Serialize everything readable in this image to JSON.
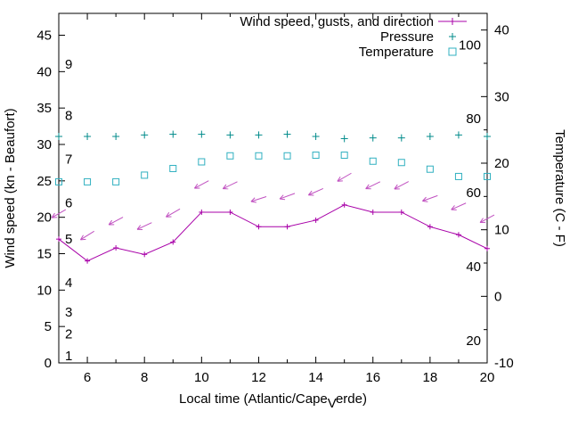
{
  "chart_data": {
    "type": "line",
    "title": "",
    "xlabel_parts": [
      "Local time (Atlantic/Cape",
      "V",
      "erde)"
    ],
    "ylabel_left": "Wind speed (kn - Beaufort)",
    "ylabel_right": "Temperature (C - F)",
    "x_range": [
      5,
      20
    ],
    "x_ticks_labeled": [
      6,
      8,
      10,
      12,
      14,
      16,
      18,
      20
    ],
    "y_left": {
      "range": [
        0,
        48
      ],
      "ticks": [
        0,
        5,
        10,
        15,
        20,
        25,
        30,
        35,
        40,
        45
      ]
    },
    "y_right": {
      "range": [
        -10,
        42.5
      ],
      "ticks": [
        -10,
        0,
        10,
        20,
        30,
        40
      ]
    },
    "beaufort_scale": {
      "labels": [
        1,
        2,
        3,
        4,
        5,
        6,
        7,
        8,
        9
      ],
      "knots": [
        1,
        4,
        7,
        11,
        17,
        22,
        28,
        34,
        41
      ]
    },
    "fahrenheit_scale": {
      "labels": [
        20,
        40,
        60,
        80,
        100
      ]
    },
    "colors": {
      "wind": "#a800a8",
      "gusts": "#c050c0",
      "pressure": "#008b8b",
      "temperature": "#30b0c0"
    },
    "legend": [
      {
        "label": "Wind speed, gusts, and direction",
        "marker": "line-point",
        "color_key": "wind"
      },
      {
        "label": "Pressure",
        "marker": "plus",
        "color_key": "pressure"
      },
      {
        "label": "Temperature",
        "marker": "square",
        "color_key": "temperature"
      }
    ],
    "x": [
      5,
      6,
      7,
      8,
      9,
      10,
      11,
      12,
      13,
      14,
      15,
      16,
      17,
      18,
      19,
      20
    ],
    "series": {
      "wind_speed_kn": [
        17.0,
        14.0,
        15.8,
        14.9,
        16.6,
        20.7,
        20.7,
        18.7,
        18.7,
        19.6,
        21.7,
        20.7,
        20.7,
        18.7,
        17.6,
        15.7
      ],
      "gusts_kn": [
        20.5,
        17.5,
        19.5,
        18.8,
        20.6,
        24.5,
        24.4,
        22.5,
        22.9,
        23.5,
        25.5,
        24.4,
        24.4,
        22.6,
        21.5,
        19.8
      ],
      "gust_arrow_angle_deg": [
        150,
        148,
        152,
        155,
        150,
        152,
        154,
        162,
        160,
        156,
        150,
        154,
        152,
        160,
        156,
        152
      ],
      "pressure_plotted_left_axis_units": [
        31.1,
        31.1,
        31.1,
        31.3,
        31.4,
        31.4,
        31.3,
        31.3,
        31.4,
        31.1,
        30.8,
        30.9,
        30.9,
        31.1,
        31.3,
        31.1
      ],
      "temperature_c": [
        17.2,
        17.2,
        17.2,
        18.2,
        19.2,
        20.2,
        21.1,
        21.1,
        21.1,
        21.2,
        21.2,
        20.3,
        20.1,
        19.1,
        18.0,
        18.0
      ]
    }
  }
}
